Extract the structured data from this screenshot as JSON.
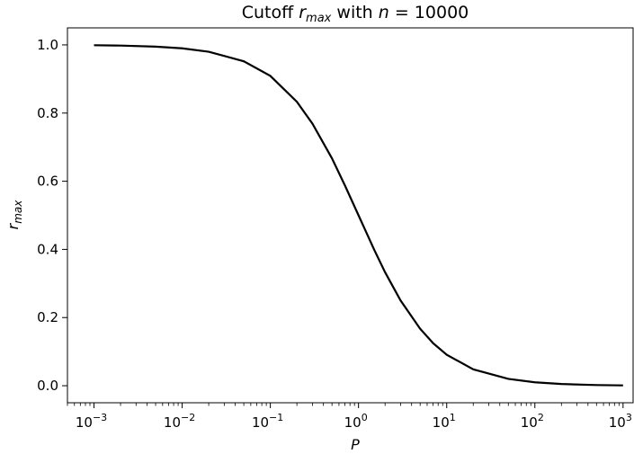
{
  "chart_data": {
    "type": "line",
    "title": {
      "prefix": "Cutoff ",
      "var": "r",
      "var_sub": "max",
      "middle": " with ",
      "n_var": "n",
      "suffix": " = 10000"
    },
    "xlabel": "P",
    "ylabel": {
      "var": "r",
      "sub": "max"
    },
    "x_scale": "log",
    "xlim": [
      0.0005,
      1300
    ],
    "ylim": [
      -0.05,
      1.05
    ],
    "x_ticks": [
      {
        "value": 0.001,
        "base": "10",
        "exp": "−3"
      },
      {
        "value": 0.01,
        "base": "10",
        "exp": "−2"
      },
      {
        "value": 0.1,
        "base": "10",
        "exp": "−1"
      },
      {
        "value": 1,
        "base": "10",
        "exp": "0"
      },
      {
        "value": 10,
        "base": "10",
        "exp": "1"
      },
      {
        "value": 100,
        "base": "10",
        "exp": "2"
      },
      {
        "value": 1000,
        "base": "10",
        "exp": "3"
      }
    ],
    "y_ticks": [
      {
        "value": 0.0,
        "label": "0.0"
      },
      {
        "value": 0.2,
        "label": "0.2"
      },
      {
        "value": 0.4,
        "label": "0.4"
      },
      {
        "value": 0.6,
        "label": "0.6"
      },
      {
        "value": 0.8,
        "label": "0.8"
      },
      {
        "value": 1.0,
        "label": "1.0"
      }
    ],
    "grid": false,
    "series": [
      {
        "color": "#000000",
        "x": [
          0.001,
          0.002,
          0.005,
          0.01,
          0.02,
          0.05,
          0.1,
          0.2,
          0.3,
          0.5,
          0.7,
          1,
          1.5,
          2,
          3,
          5,
          7,
          10,
          20,
          50,
          100,
          200,
          500,
          1000
        ],
        "y": [
          0.999,
          0.998,
          0.995,
          0.99,
          0.98,
          0.952,
          0.909,
          0.833,
          0.769,
          0.667,
          0.588,
          0.5,
          0.4,
          0.333,
          0.25,
          0.167,
          0.125,
          0.091,
          0.048,
          0.02,
          0.01,
          0.005,
          0.002,
          0.001
        ]
      }
    ]
  }
}
